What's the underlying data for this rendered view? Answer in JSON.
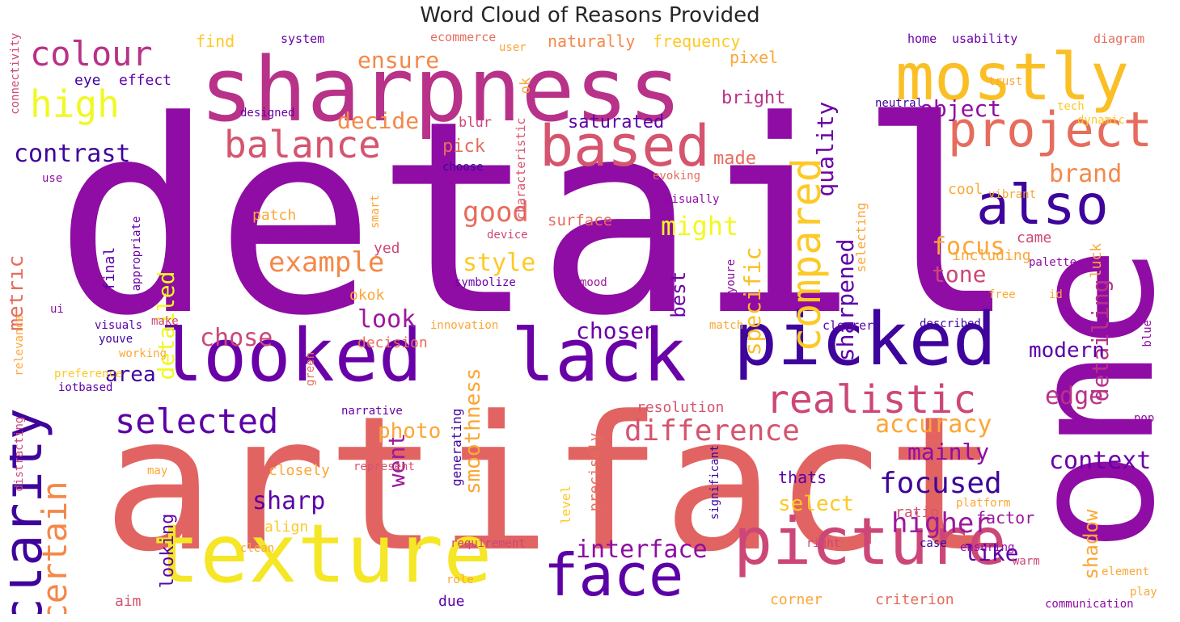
{
  "title": "Word Cloud of Reasons Provided",
  "palette": "plasma",
  "words": [
    {
      "text": "detail",
      "color": "#8f0da4"
    },
    {
      "text": "artifact",
      "color": "#e16462"
    },
    {
      "text": "one",
      "color": "#8f0da4"
    },
    {
      "text": "sharpness",
      "color": "#b83289"
    },
    {
      "text": "texture",
      "color": "#f5e626"
    },
    {
      "text": "picked",
      "color": "#3e049c"
    },
    {
      "text": "looked",
      "color": "#6a00a8"
    },
    {
      "text": "lack",
      "color": "#6a00a8"
    },
    {
      "text": "mostly",
      "color": "#fbbf26"
    },
    {
      "text": "picture",
      "color": "#cc4778"
    },
    {
      "text": "face",
      "color": "#5c01a6"
    },
    {
      "text": "based",
      "color": "#d5546e"
    },
    {
      "text": "clarity",
      "color": "#3e049c"
    },
    {
      "text": "project",
      "color": "#e66c5c"
    },
    {
      "text": "also",
      "color": "#3e049c"
    },
    {
      "text": "compared",
      "color": "#fdc926"
    },
    {
      "text": "realistic",
      "color": "#cc4778"
    },
    {
      "text": "balance",
      "color": "#d5546e"
    },
    {
      "text": "colour",
      "color": "#b83289"
    },
    {
      "text": "selected",
      "color": "#5c01a6"
    },
    {
      "text": "high",
      "color": "#f0f921"
    },
    {
      "text": "certain",
      "color": "#f48849"
    },
    {
      "text": "difference",
      "color": "#d5546e"
    },
    {
      "text": "interface",
      "color": "#8f0da4"
    },
    {
      "text": "example",
      "color": "#f48849"
    },
    {
      "text": "focused",
      "color": "#3e049c"
    },
    {
      "text": "higher",
      "color": "#9c179e"
    },
    {
      "text": "contrast",
      "color": "#3e049c"
    },
    {
      "text": "good",
      "color": "#e66c5c"
    },
    {
      "text": "ensure",
      "color": "#f48849"
    },
    {
      "text": "chose",
      "color": "#cc4778"
    },
    {
      "text": "detailed",
      "color": "#f0f921"
    },
    {
      "text": "specific",
      "color": "#fbbf26"
    },
    {
      "text": "detailing",
      "color": "#b83289"
    },
    {
      "text": "quality",
      "color": "#6a00a8"
    },
    {
      "text": "sharpened",
      "color": "#5c01a6"
    },
    {
      "text": "edge",
      "color": "#b83289"
    },
    {
      "text": "accuracy",
      "color": "#fca636"
    },
    {
      "text": "context",
      "color": "#6a00a8"
    },
    {
      "text": "brand",
      "color": "#f48849"
    },
    {
      "text": "tone",
      "color": "#cc4778"
    },
    {
      "text": "focus",
      "color": "#fca636"
    },
    {
      "text": "object",
      "color": "#8f0da4"
    },
    {
      "text": "might",
      "color": "#f0f921"
    },
    {
      "text": "style",
      "color": "#fdc926"
    },
    {
      "text": "decide",
      "color": "#f48849"
    },
    {
      "text": "look",
      "color": "#9c179e"
    },
    {
      "text": "chosen",
      "color": "#6a00a8"
    },
    {
      "text": "sharp",
      "color": "#5c01a6"
    },
    {
      "text": "went",
      "color": "#9c179e"
    },
    {
      "text": "area",
      "color": "#3e049c"
    },
    {
      "text": "metric",
      "color": "#e66c5c"
    },
    {
      "text": "smoothness",
      "color": "#fca636"
    },
    {
      "text": "modern",
      "color": "#5c01a6"
    },
    {
      "text": "mainly",
      "color": "#8f0da4"
    },
    {
      "text": "like",
      "color": "#5c01a6"
    },
    {
      "text": "shadow",
      "color": "#fca636"
    },
    {
      "text": "photo",
      "color": "#fca636"
    },
    {
      "text": "looking",
      "color": "#5c01a6"
    },
    {
      "text": "select",
      "color": "#fdc926"
    },
    {
      "text": "best",
      "color": "#6a00a8"
    },
    {
      "text": "saturated",
      "color": "#5c01a6"
    },
    {
      "text": "bright",
      "color": "#b83289"
    },
    {
      "text": "made",
      "color": "#e66c5c"
    },
    {
      "text": "pixel",
      "color": "#fca636"
    },
    {
      "text": "pick",
      "color": "#e66c5c"
    },
    {
      "text": "frequency",
      "color": "#fdc926"
    },
    {
      "text": "naturally",
      "color": "#f48849"
    },
    {
      "text": "find",
      "color": "#fdc926"
    },
    {
      "text": "eye",
      "color": "#3e049c"
    },
    {
      "text": "effect",
      "color": "#5c01a6"
    },
    {
      "text": "blur",
      "color": "#cc4778"
    },
    {
      "text": "ok",
      "color": "#fca636"
    },
    {
      "text": "cool",
      "color": "#fca636"
    },
    {
      "text": "surface",
      "color": "#e66c5c"
    },
    {
      "text": "including",
      "color": "#fca636"
    },
    {
      "text": "patch",
      "color": "#fca636"
    },
    {
      "text": "yed",
      "color": "#cc4778"
    },
    {
      "text": "final",
      "color": "#5c01a6"
    },
    {
      "text": "okok",
      "color": "#fca636"
    },
    {
      "text": "decision",
      "color": "#e66c5c"
    },
    {
      "text": "resolution",
      "color": "#d5546e"
    },
    {
      "text": "closely",
      "color": "#fca636"
    },
    {
      "text": "align",
      "color": "#fdc926"
    },
    {
      "text": "thats",
      "color": "#5c01a6"
    },
    {
      "text": "ratio",
      "color": "#d5546e"
    },
    {
      "text": "factor",
      "color": "#9c179e"
    },
    {
      "text": "luck",
      "color": "#fca636"
    },
    {
      "text": "came",
      "color": "#cc4778"
    },
    {
      "text": "selecting",
      "color": "#fca636"
    },
    {
      "text": "generating",
      "color": "#3e049c"
    },
    {
      "text": "precisely",
      "color": "#e66c5c"
    },
    {
      "text": "level",
      "color": "#fdc926"
    },
    {
      "text": "corner",
      "color": "#fca636"
    },
    {
      "text": "criterion",
      "color": "#e66c5c"
    },
    {
      "text": "aim",
      "color": "#d5546e"
    },
    {
      "text": "due",
      "color": "#5c01a6"
    },
    {
      "text": "system",
      "color": "#6a00a8"
    },
    {
      "text": "ecommerce",
      "color": "#e66c5c"
    },
    {
      "text": "user",
      "color": "#fca636"
    },
    {
      "text": "home",
      "color": "#6a00a8"
    },
    {
      "text": "usability",
      "color": "#6a00a8"
    },
    {
      "text": "diagram",
      "color": "#e66c5c"
    },
    {
      "text": "trust",
      "color": "#fca636"
    },
    {
      "text": "tech",
      "color": "#fdc926"
    },
    {
      "text": "dynamic",
      "color": "#fdc926"
    },
    {
      "text": "neutral",
      "color": "#3e049c"
    },
    {
      "text": "designed",
      "color": "#6a00a8"
    },
    {
      "text": "characteristic",
      "color": "#d5546e"
    },
    {
      "text": "choose",
      "color": "#3e049c"
    },
    {
      "text": "evoking",
      "color": "#e66c5c"
    },
    {
      "text": "vibrant",
      "color": "#fca636"
    },
    {
      "text": "visually",
      "color": "#8f0da4"
    },
    {
      "text": "device",
      "color": "#cc4778"
    },
    {
      "text": "palette",
      "color": "#8f0da4"
    },
    {
      "text": "symbolize",
      "color": "#6a00a8"
    },
    {
      "text": "mood",
      "color": "#9c179e"
    },
    {
      "text": "youre",
      "color": "#8f0da4"
    },
    {
      "text": "free",
      "color": "#fca636"
    },
    {
      "text": "id",
      "color": "#fca636"
    },
    {
      "text": "smart",
      "color": "#fca636"
    },
    {
      "text": "appropriate",
      "color": "#6a00a8"
    },
    {
      "text": "use",
      "color": "#8f0da4"
    },
    {
      "text": "connectivity",
      "color": "#cc4778"
    },
    {
      "text": "ui",
      "color": "#8f0da4"
    },
    {
      "text": "visuals",
      "color": "#5c01a6"
    },
    {
      "text": "make",
      "color": "#cc4778"
    },
    {
      "text": "innovation",
      "color": "#fca636"
    },
    {
      "text": "match",
      "color": "#fca636"
    },
    {
      "text": "clearer",
      "color": "#5c01a6"
    },
    {
      "text": "described",
      "color": "#3e049c"
    },
    {
      "text": "blue",
      "color": "#8f0da4"
    },
    {
      "text": "relevance",
      "color": "#fca636"
    },
    {
      "text": "youve",
      "color": "#3e049c"
    },
    {
      "text": "working",
      "color": "#fca636"
    },
    {
      "text": "preference",
      "color": "#fdc926"
    },
    {
      "text": "iotbased",
      "color": "#5c01a6"
    },
    {
      "text": "green",
      "color": "#e66c5c"
    },
    {
      "text": "narrative",
      "color": "#6a00a8"
    },
    {
      "text": "pop",
      "color": "#8f0da4"
    },
    {
      "text": "distracting",
      "color": "#cc4778"
    },
    {
      "text": "may",
      "color": "#fca636"
    },
    {
      "text": "represent",
      "color": "#d5546e"
    },
    {
      "text": "significant",
      "color": "#3e049c"
    },
    {
      "text": "platform",
      "color": "#fca636"
    },
    {
      "text": "requirement",
      "color": "#cc4778"
    },
    {
      "text": "clean",
      "color": "#fca636"
    },
    {
      "text": "right",
      "color": "#cc4778"
    },
    {
      "text": "case",
      "color": "#3e049c"
    },
    {
      "text": "ensuring",
      "color": "#8f0da4"
    },
    {
      "text": "warm",
      "color": "#cc4778"
    },
    {
      "text": "element",
      "color": "#fca636"
    },
    {
      "text": "role",
      "color": "#fca636"
    },
    {
      "text": "play",
      "color": "#fca636"
    },
    {
      "text": "communication",
      "color": "#8f0da4"
    }
  ]
}
